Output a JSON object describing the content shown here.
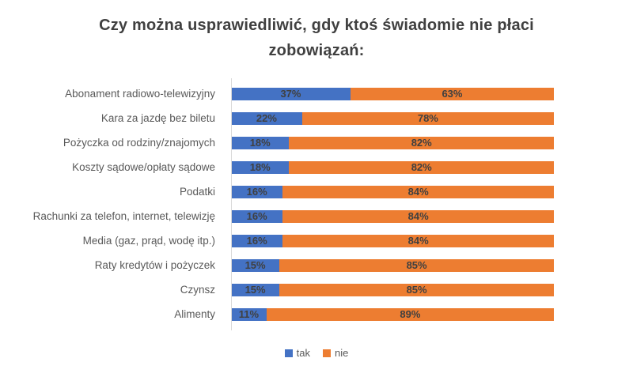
{
  "chart_data": {
    "type": "bar",
    "orientation": "horizontal",
    "stacked": true,
    "title": "Czy można usprawiedliwić, gdy ktoś świadomie nie płaci zobowiązań:",
    "categories": [
      "Abonament radiowo-telewizyjny",
      "Kara za jazdę bez biletu",
      "Pożyczka od rodziny/znajomych",
      "Koszty sądowe/opłaty sądowe",
      "Podatki",
      "Rachunki za telefon, internet, telewizję",
      "Media (gaz, prąd, wodę itp.)",
      "Raty kredytów i pożyczek",
      "Czynsz",
      "Alimenty"
    ],
    "series": [
      {
        "name": "tak",
        "color": "#4472C4",
        "values": [
          37,
          22,
          18,
          18,
          16,
          16,
          16,
          15,
          15,
          11
        ]
      },
      {
        "name": "nie",
        "color": "#ED7D31",
        "values": [
          63,
          78,
          82,
          82,
          84,
          84,
          84,
          85,
          85,
          89
        ]
      }
    ],
    "value_format": "percent",
    "xlim": [
      0,
      100
    ],
    "data_labels": true,
    "legend_position": "bottom",
    "colors": {
      "title_text": "#404040",
      "category_text": "#595959",
      "data_label_text": "#404040",
      "axis_line": "#D9D9D9",
      "background": "#FFFFFF"
    }
  }
}
